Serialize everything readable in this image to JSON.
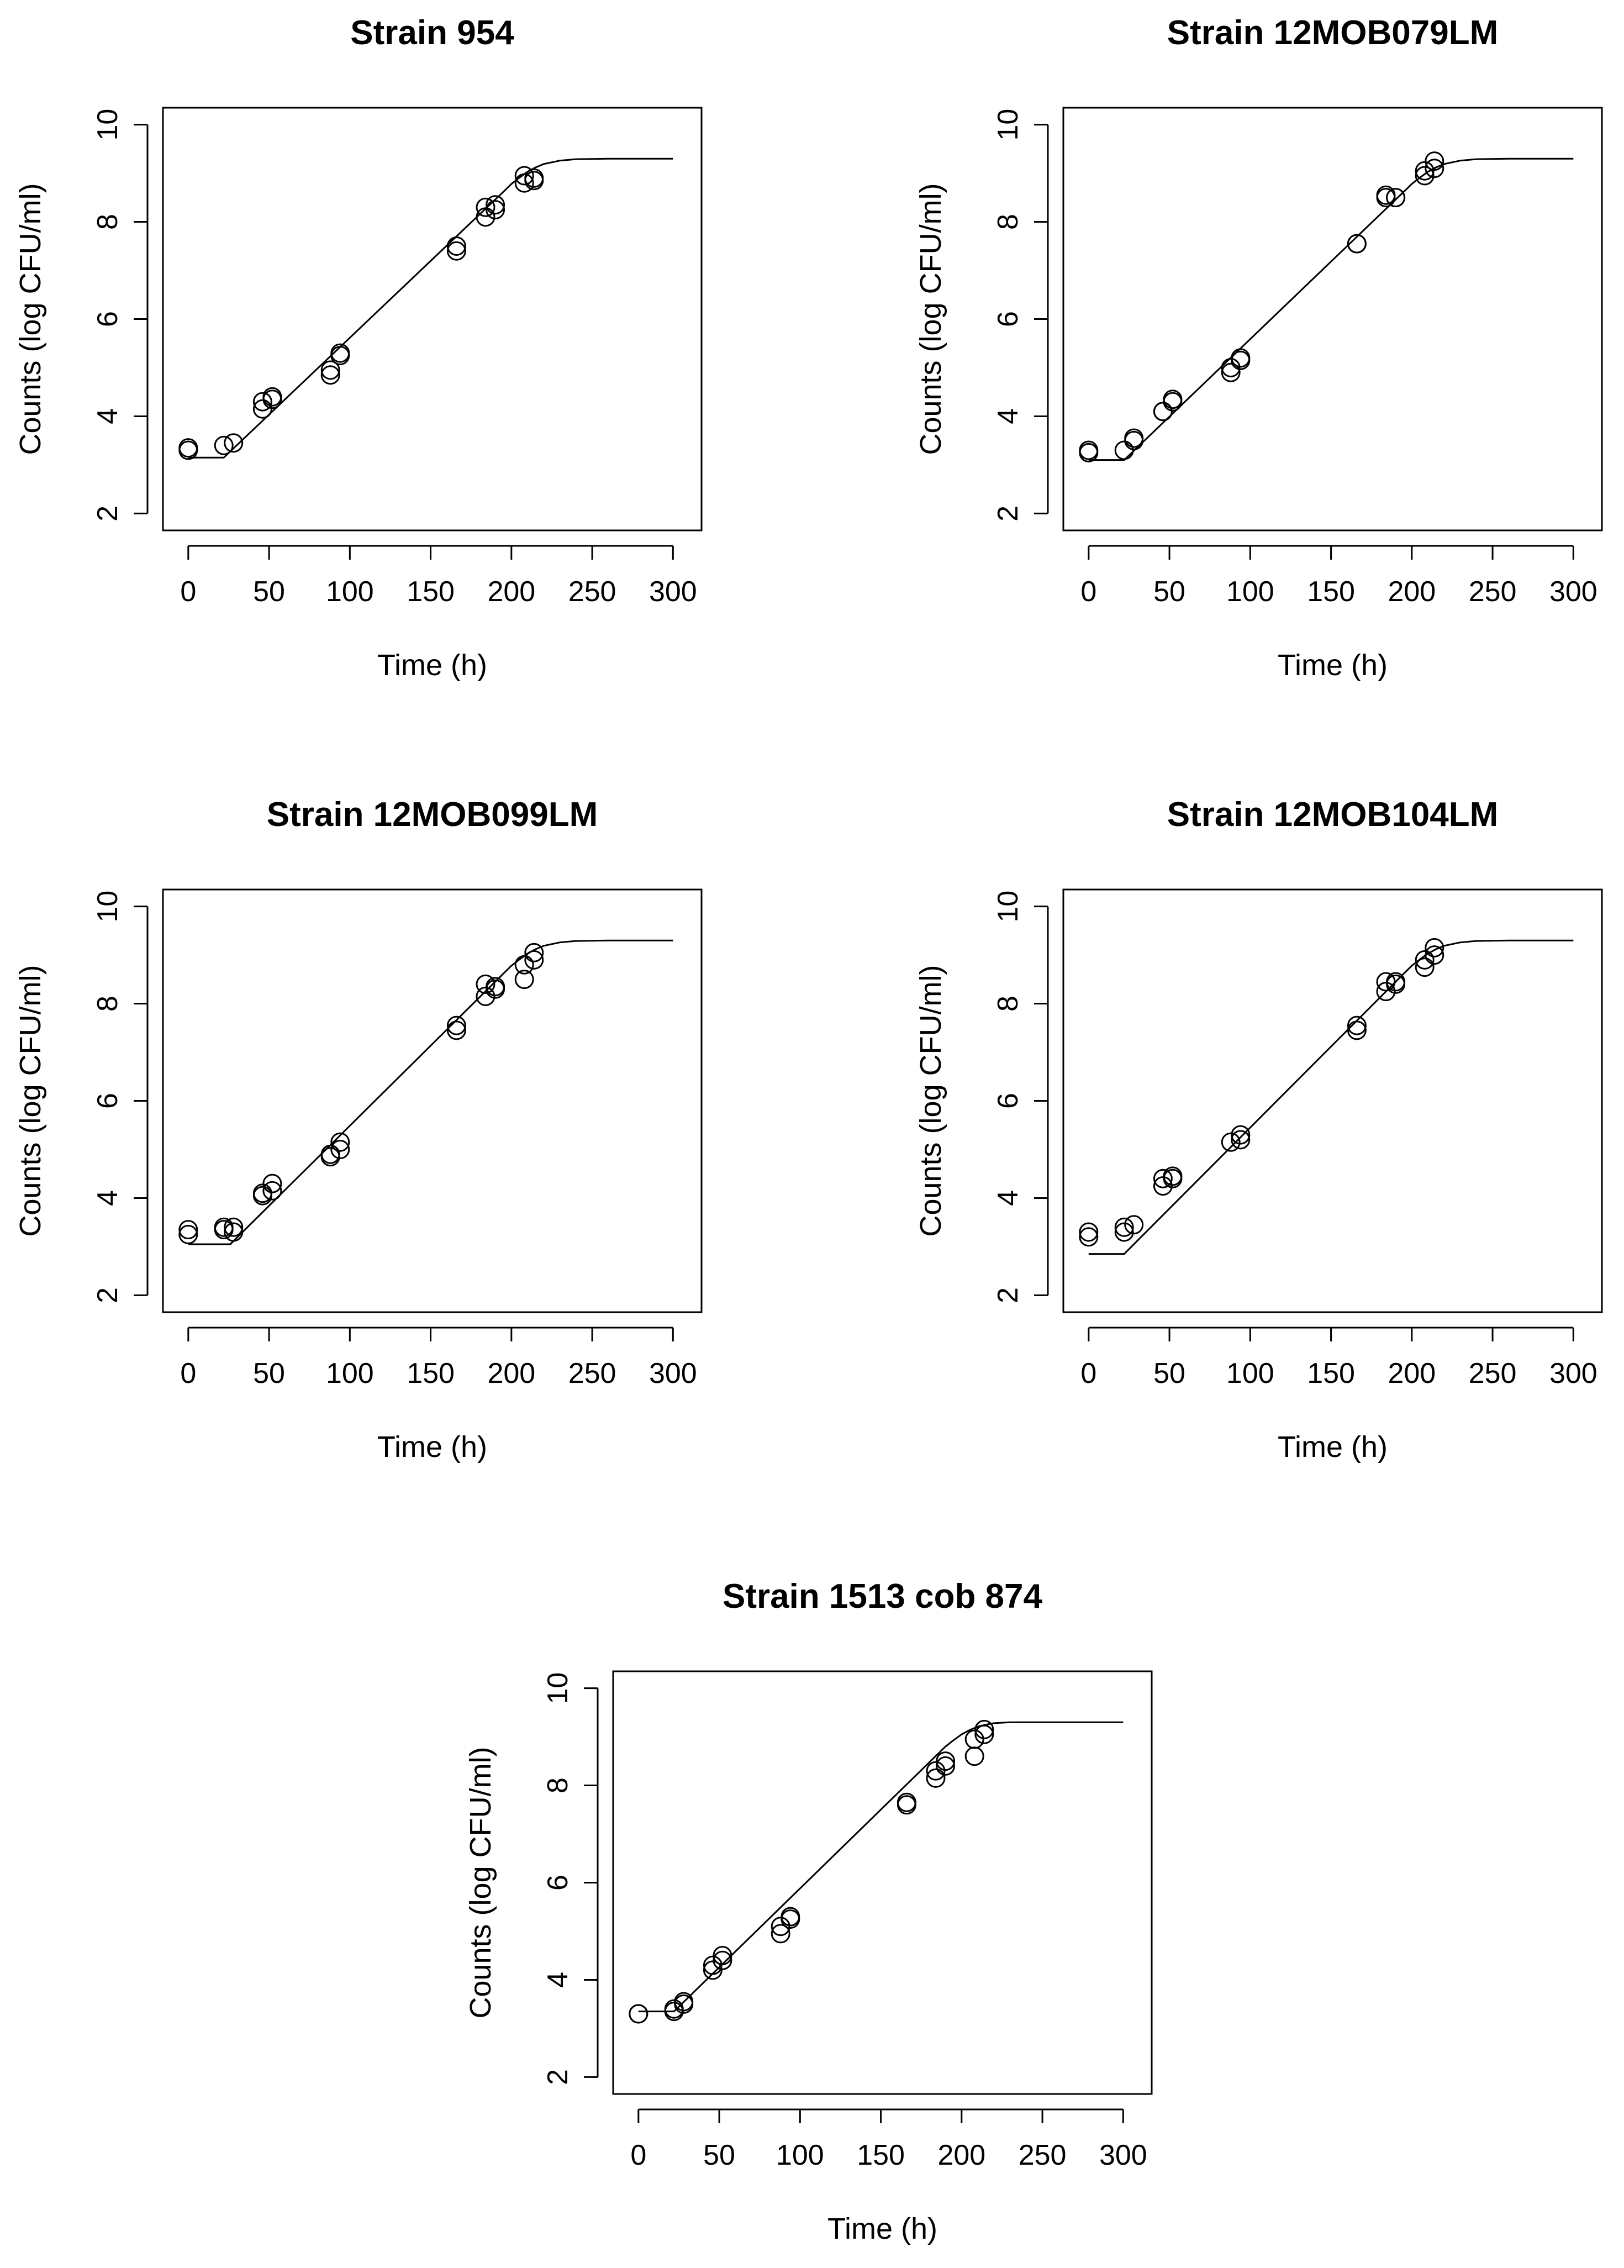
{
  "chart_data": [
    {
      "type": "scatter",
      "title": "Strain 954",
      "xlabel": "Time (h)",
      "ylabel": "Counts (log CFU/ml)",
      "xlim": [
        0,
        300
      ],
      "ylim": [
        2,
        10
      ],
      "x_ticks": [
        "0",
        "50",
        "100",
        "150",
        "200",
        "250",
        "300"
      ],
      "y_ticks": [
        "2",
        "4",
        "6",
        "8",
        "10"
      ],
      "grid": false,
      "legend": "none",
      "points": {
        "x": [
          0,
          0,
          22,
          28,
          46,
          46,
          52,
          52,
          88,
          88,
          94,
          94,
          166,
          166,
          184,
          184,
          190,
          190,
          208,
          208,
          214,
          214
        ],
        "y": [
          3.3,
          3.35,
          3.4,
          3.45,
          4.15,
          4.3,
          4.35,
          4.4,
          4.85,
          4.95,
          5.25,
          5.3,
          7.4,
          7.5,
          8.1,
          8.3,
          8.25,
          8.35,
          8.8,
          8.95,
          8.85,
          8.9
        ]
      },
      "fit": {
        "x": [
          0,
          22,
          196,
          200,
          205,
          210,
          215,
          220,
          230,
          240,
          260,
          300
        ],
        "y": [
          3.15,
          3.15,
          8.65,
          8.78,
          8.91,
          9.03,
          9.12,
          9.19,
          9.26,
          9.29,
          9.3,
          9.3
        ]
      }
    },
    {
      "type": "scatter",
      "title": "Strain 12MOB079LM",
      "xlabel": "Time (h)",
      "ylabel": "Counts (log CFU/ml)",
      "xlim": [
        0,
        300
      ],
      "ylim": [
        2,
        10
      ],
      "x_ticks": [
        "0",
        "50",
        "100",
        "150",
        "200",
        "250",
        "300"
      ],
      "y_ticks": [
        "2",
        "4",
        "6",
        "8",
        "10"
      ],
      "grid": false,
      "legend": "none",
      "points": {
        "x": [
          0,
          0,
          22,
          28,
          28,
          46,
          46,
          52,
          52,
          88,
          88,
          94,
          94,
          166,
          166,
          184,
          184,
          190,
          190,
          208,
          208,
          214,
          214
        ],
        "y": [
          3.25,
          3.3,
          3.3,
          3.5,
          3.55,
          4.1,
          4.1,
          4.3,
          4.35,
          4.9,
          5.0,
          5.15,
          5.2,
          7.55,
          7.55,
          8.5,
          8.55,
          8.5,
          8.5,
          8.95,
          9.05,
          9.1,
          9.25
        ]
      },
      "fit": {
        "x": [
          0,
          22,
          196,
          200,
          205,
          210,
          215,
          220,
          230,
          240,
          260,
          300
        ],
        "y": [
          3.1,
          3.1,
          8.65,
          8.78,
          8.91,
          9.03,
          9.12,
          9.19,
          9.26,
          9.29,
          9.3,
          9.3
        ]
      }
    },
    {
      "type": "scatter",
      "title": "Strain 12MOB099LM",
      "xlabel": "Time (h)",
      "ylabel": "Counts (log CFU/ml)",
      "xlim": [
        0,
        300
      ],
      "ylim": [
        2,
        10
      ],
      "x_ticks": [
        "0",
        "50",
        "100",
        "150",
        "200",
        "250",
        "300"
      ],
      "y_ticks": [
        "2",
        "4",
        "6",
        "8",
        "10"
      ],
      "grid": false,
      "legend": "none",
      "points": {
        "x": [
          0,
          0,
          22,
          22,
          28,
          28,
          46,
          46,
          52,
          52,
          88,
          88,
          94,
          94,
          166,
          166,
          184,
          184,
          190,
          190,
          208,
          208,
          214,
          214
        ],
        "y": [
          3.25,
          3.35,
          3.35,
          3.4,
          3.3,
          3.4,
          4.05,
          4.1,
          4.15,
          4.3,
          4.85,
          4.9,
          5.0,
          5.15,
          7.45,
          7.55,
          8.15,
          8.4,
          8.3,
          8.35,
          8.5,
          8.8,
          8.9,
          9.05
        ]
      },
      "fit": {
        "x": [
          0,
          26,
          196,
          200,
          205,
          210,
          215,
          220,
          230,
          240,
          260,
          300
        ],
        "y": [
          3.05,
          3.05,
          8.65,
          8.78,
          8.91,
          9.03,
          9.12,
          9.19,
          9.26,
          9.29,
          9.3,
          9.3
        ]
      }
    },
    {
      "type": "scatter",
      "title": "Strain 12MOB104LM",
      "xlabel": "Time (h)",
      "ylabel": "Counts (log CFU/ml)",
      "xlim": [
        0,
        300
      ],
      "ylim": [
        2,
        10
      ],
      "x_ticks": [
        "0",
        "50",
        "100",
        "150",
        "200",
        "250",
        "300"
      ],
      "y_ticks": [
        "2",
        "4",
        "6",
        "8",
        "10"
      ],
      "grid": false,
      "legend": "none",
      "points": {
        "x": [
          0,
          0,
          22,
          22,
          28,
          46,
          46,
          52,
          52,
          88,
          94,
          94,
          166,
          166,
          184,
          184,
          190,
          190,
          208,
          208,
          214,
          214
        ],
        "y": [
          3.2,
          3.3,
          3.3,
          3.4,
          3.45,
          4.25,
          4.4,
          4.4,
          4.45,
          5.15,
          5.2,
          5.3,
          7.45,
          7.55,
          8.25,
          8.45,
          8.4,
          8.45,
          8.75,
          8.9,
          9.0,
          9.15
        ]
      },
      "fit": {
        "x": [
          0,
          22,
          196,
          200,
          205,
          210,
          215,
          220,
          230,
          240,
          260,
          300
        ],
        "y": [
          2.85,
          2.85,
          8.65,
          8.78,
          8.91,
          9.03,
          9.12,
          9.19,
          9.26,
          9.29,
          9.3,
          9.3
        ]
      }
    },
    {
      "type": "scatter",
      "title": "Strain 1513 cob 874",
      "xlabel": "Time (h)",
      "ylabel": "Counts (log CFU/ml)",
      "xlim": [
        0,
        300
      ],
      "ylim": [
        2,
        10
      ],
      "x_ticks": [
        "0",
        "50",
        "100",
        "150",
        "200",
        "250",
        "300"
      ],
      "y_ticks": [
        "2",
        "4",
        "6",
        "8",
        "10"
      ],
      "grid": false,
      "legend": "none",
      "points": {
        "x": [
          0,
          0,
          22,
          22,
          28,
          28,
          46,
          46,
          52,
          52,
          88,
          88,
          94,
          94,
          166,
          166,
          184,
          184,
          190,
          190,
          208,
          208,
          214,
          214
        ],
        "y": [
          3.3,
          3.3,
          3.35,
          3.4,
          3.5,
          3.55,
          4.2,
          4.3,
          4.4,
          4.5,
          4.95,
          5.1,
          5.25,
          5.3,
          7.6,
          7.65,
          8.15,
          8.3,
          8.4,
          8.5,
          8.6,
          8.95,
          9.05,
          9.15
        ]
      },
      "fit": {
        "x": [
          0,
          22,
          190,
          195,
          200,
          205,
          210,
          215,
          220,
          230,
          240,
          260,
          300
        ],
        "y": [
          3.35,
          3.35,
          8.8,
          8.93,
          9.05,
          9.14,
          9.21,
          9.25,
          9.28,
          9.3,
          9.3,
          9.3,
          9.3
        ]
      }
    }
  ]
}
